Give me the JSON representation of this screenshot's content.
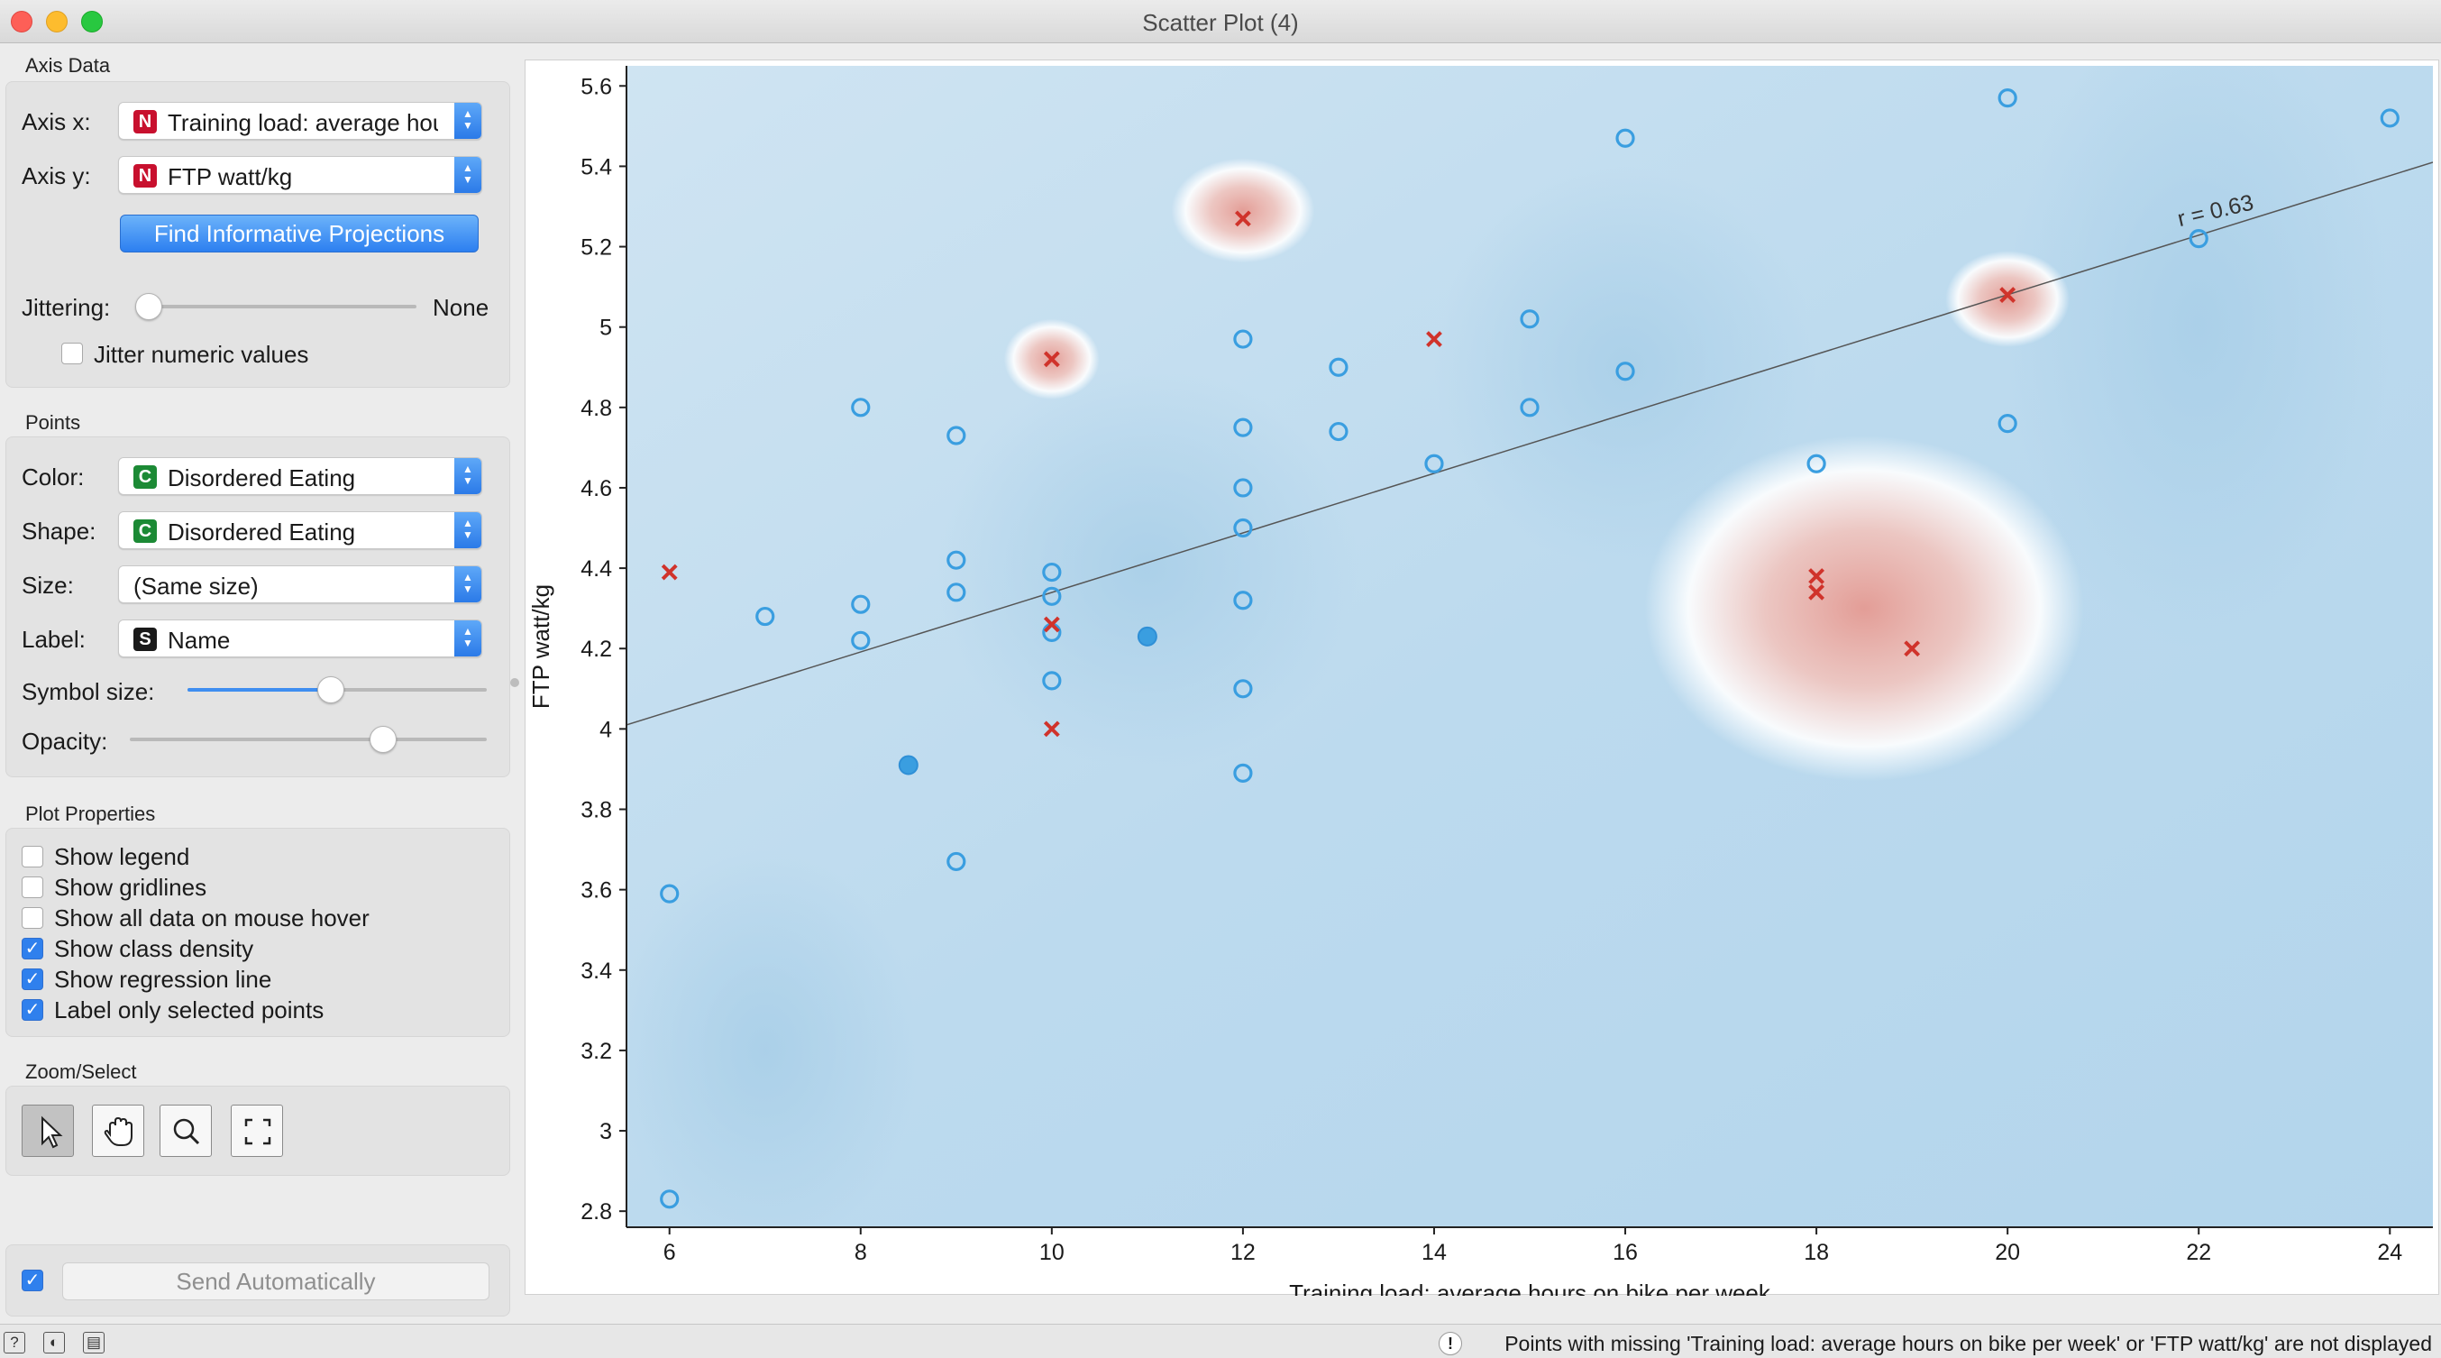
{
  "window": {
    "title": "Scatter Plot (4)"
  },
  "axis_data": {
    "title": "Axis Data",
    "axis_x": {
      "label": "Axis x:",
      "badge": "N",
      "value": "Training load: average hours on bike per week"
    },
    "axis_y": {
      "label": "Axis y:",
      "badge": "N",
      "value": "FTP watt/kg"
    },
    "find_button": "Find Informative Projections",
    "jittering": {
      "label": "Jittering:",
      "value_text": "None",
      "level": 0
    },
    "jitter_numeric": {
      "label": "Jitter numeric values",
      "checked": false
    }
  },
  "points": {
    "title": "Points",
    "color": {
      "label": "Color:",
      "badge": "C",
      "value": "Disordered Eating"
    },
    "shape": {
      "label": "Shape:",
      "badge": "C",
      "value": "Disordered Eating"
    },
    "size": {
      "label": "Size:",
      "value": "(Same size)"
    },
    "label": {
      "label": "Label:",
      "badge": "S",
      "value": "Name"
    },
    "symbol_size": {
      "label": "Symbol size:",
      "level": 0.48
    },
    "opacity": {
      "label": "Opacity:",
      "level": 0.71
    }
  },
  "plot_properties": {
    "title": "Plot Properties",
    "items": [
      {
        "label": "Show legend",
        "checked": false
      },
      {
        "label": "Show gridlines",
        "checked": false
      },
      {
        "label": "Show all data on mouse hover",
        "checked": false
      },
      {
        "label": "Show class density",
        "checked": true
      },
      {
        "label": "Show regression line",
        "checked": true
      },
      {
        "label": "Label only selected points",
        "checked": true
      }
    ]
  },
  "zoom_select": {
    "title": "Zoom/Select",
    "tools": [
      "select-arrow-icon",
      "pan-hand-icon",
      "zoom-magnifier-icon",
      "fit-to-view-icon"
    ]
  },
  "send": {
    "label": "Send Automatically",
    "checked": true
  },
  "status": {
    "message": "Points with missing 'Training load: average hours on bike per week' or 'FTP watt/kg' are not displayed"
  },
  "colors": {
    "circle": "#3a9ee0",
    "cross": "#d0332b",
    "accent": "#2f80ed"
  },
  "chart_data": {
    "type": "scatter",
    "xlabel": "Training load: average hours on bike per week",
    "ylabel": "FTP watt/kg",
    "xlim": [
      5.55,
      24.45
    ],
    "ylim": [
      2.76,
      5.65
    ],
    "xticks": [
      "6",
      "8",
      "10",
      "12",
      "14",
      "16",
      "18",
      "20",
      "22",
      "24"
    ],
    "yticks": [
      "2.8",
      "3",
      "3.2",
      "3.4",
      "3.6",
      "3.8",
      "4",
      "4.2",
      "4.4",
      "4.6",
      "4.8",
      "5",
      "5.2",
      "5.4",
      "5.6"
    ],
    "grid": false,
    "legend": "none",
    "class_density": true,
    "regression": {
      "label": "r = 0.63",
      "x": [
        5.55,
        24.45
      ],
      "y": [
        4.01,
        5.41
      ]
    },
    "series": [
      {
        "shape": "circle",
        "points": [
          [
            6,
            2.83
          ],
          [
            6,
            3.59
          ],
          [
            7,
            4.28
          ],
          [
            8,
            4.8
          ],
          [
            8,
            4.31
          ],
          [
            8,
            4.22
          ],
          [
            9,
            4.73
          ],
          [
            9,
            4.42
          ],
          [
            9,
            4.34
          ],
          [
            9,
            3.67
          ],
          [
            10,
            4.39
          ],
          [
            10,
            4.33
          ],
          [
            10,
            4.24
          ],
          [
            10,
            4.12
          ],
          [
            12,
            4.97
          ],
          [
            12,
            4.75
          ],
          [
            12,
            4.6
          ],
          [
            12,
            4.5
          ],
          [
            12,
            4.32
          ],
          [
            12,
            4.1
          ],
          [
            12,
            3.89
          ],
          [
            13,
            4.9
          ],
          [
            13,
            4.74
          ],
          [
            14,
            4.66
          ],
          [
            15,
            5.02
          ],
          [
            15,
            4.8
          ],
          [
            16,
            5.47
          ],
          [
            16,
            4.89
          ],
          [
            18,
            4.66
          ],
          [
            20,
            5.57
          ],
          [
            20,
            4.76
          ],
          [
            22,
            5.22
          ],
          [
            24,
            5.52
          ]
        ]
      },
      {
        "shape": "filled-circle",
        "points": [
          [
            8.5,
            3.91
          ],
          [
            11,
            4.23
          ]
        ]
      },
      {
        "shape": "cross",
        "points": [
          [
            6,
            4.39
          ],
          [
            10,
            4.92
          ],
          [
            10,
            4.26
          ],
          [
            10,
            4.0
          ],
          [
            12,
            5.27
          ],
          [
            14,
            4.97
          ],
          [
            18,
            4.38
          ],
          [
            18,
            4.34
          ],
          [
            19,
            4.2
          ],
          [
            20,
            5.08
          ]
        ]
      }
    ],
    "density_regions": [
      {
        "cx": 18.5,
        "cy": 4.3,
        "rx": 2.3,
        "ry": 0.43
      },
      {
        "cx": 12,
        "cy": 5.29,
        "rx": 0.75,
        "ry": 0.13
      },
      {
        "cx": 20,
        "cy": 5.07,
        "rx": 0.65,
        "ry": 0.12
      },
      {
        "cx": 10,
        "cy": 4.92,
        "rx": 0.5,
        "ry": 0.1
      }
    ]
  }
}
